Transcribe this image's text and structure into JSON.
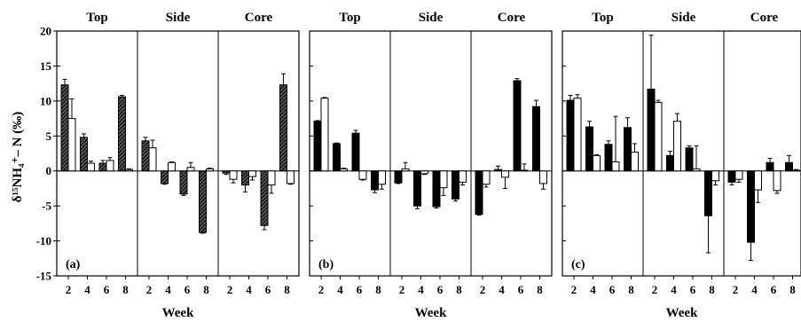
{
  "ylabel": "δ¹⁵NH₄⁺– N (‰)",
  "xlabel": "Week",
  "groups": [
    "Top",
    "Side",
    "Core"
  ],
  "weeks": [
    "2",
    "4",
    "6",
    "8"
  ],
  "ylim": [
    -15,
    20
  ],
  "yticks": [
    "20",
    "15",
    "10",
    "5",
    "0",
    "-5",
    "-10",
    "-15"
  ],
  "chart_data": [
    {
      "type": "bar",
      "panel_label": "(a)",
      "series": [
        {
          "style": "hatched",
          "values": [
            [
              12.3,
              4.8,
              1.1,
              10.6
            ],
            [
              4.3,
              -1.8,
              -3.3,
              -8.8
            ],
            [
              -0.3,
              -2.0,
              -7.8,
              12.3
            ]
          ],
          "errors": [
            [
              0.8,
              0.5,
              0.4,
              0.2
            ],
            [
              0.5,
              0.1,
              0.2,
              0.1
            ],
            [
              0.2,
              1.0,
              0.6,
              1.6
            ]
          ]
        },
        {
          "style": "open",
          "values": [
            [
              7.5,
              1.1,
              1.5,
              0.2
            ],
            [
              3.3,
              1.2,
              0.5,
              0.3
            ],
            [
              -1.2,
              -0.8,
              -2.0,
              -1.8
            ]
          ],
          "errors": [
            [
              2.8,
              0.3,
              0.4,
              0.1
            ],
            [
              1.1,
              0.1,
              0.7,
              0.1
            ],
            [
              0.5,
              0.5,
              1.2,
              0.1
            ]
          ]
        }
      ]
    },
    {
      "type": "bar",
      "panel_label": "(b)",
      "series": [
        {
          "style": "black",
          "values": [
            [
              7.1,
              3.9,
              5.4,
              -2.7
            ],
            [
              -1.7,
              -5.0,
              -5.1,
              -4.0
            ],
            [
              -6.2,
              0.2,
              12.9,
              9.2
            ]
          ],
          "errors": [
            [
              0.1,
              0.1,
              0.4,
              0.4
            ],
            [
              0.1,
              0.4,
              0.2,
              0.3
            ],
            [
              0.1,
              0.5,
              0.3,
              0.9
            ]
          ]
        },
        {
          "style": "open",
          "values": [
            [
              10.4,
              0.3,
              -1.2,
              -1.9
            ],
            [
              0.3,
              -0.4,
              -2.4,
              -1.6
            ],
            [
              -1.9,
              -0.9,
              0.1,
              -1.8
            ]
          ],
          "errors": [
            [
              0.1,
              0.1,
              0.1,
              0.7
            ],
            [
              0.9,
              0.1,
              1.1,
              0.4
            ],
            [
              0.4,
              1.6,
              0.9,
              0.8
            ]
          ]
        }
      ]
    },
    {
      "type": "bar",
      "panel_label": "(c)",
      "series": [
        {
          "style": "black",
          "values": [
            [
              10.1,
              6.3,
              3.8,
              6.2
            ],
            [
              11.7,
              2.2,
              3.3,
              -6.4
            ],
            [
              -1.6,
              -10.2,
              1.2,
              1.2
            ]
          ],
          "errors": [
            [
              0.7,
              0.8,
              0.5,
              1.4
            ],
            [
              7.7,
              0.6,
              0.3,
              5.3
            ],
            [
              0.4,
              2.6,
              0.6,
              1.0
            ]
          ]
        },
        {
          "style": "open",
          "values": [
            [
              10.4,
              2.2,
              1.3,
              2.7
            ],
            [
              9.8,
              7.1,
              0.3,
              -1.4
            ],
            [
              -1.2,
              -2.7,
              -2.8,
              0.1
            ]
          ],
          "errors": [
            [
              0.5,
              0.1,
              6.5,
              1.2
            ],
            [
              0.3,
              1.1,
              3.3,
              0.6
            ],
            [
              0.4,
              1.8,
              0.4,
              0.1
            ]
          ]
        }
      ]
    }
  ]
}
